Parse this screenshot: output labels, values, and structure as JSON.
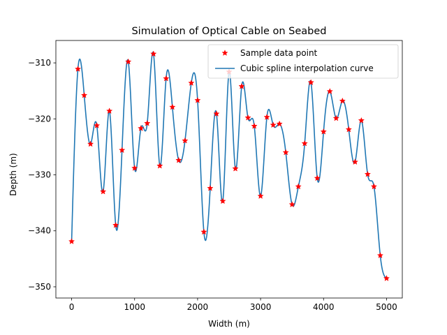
{
  "chart_data": {
    "type": "line",
    "title": "Simulation of Optical Cable on Seabed",
    "xlabel": "Width (m)",
    "ylabel": "Depth (m)",
    "xlim": [
      -250,
      5250
    ],
    "ylim": [
      -352,
      -306
    ],
    "xticks": [
      0,
      1000,
      2000,
      3000,
      4000,
      5000
    ],
    "xtick_labels": [
      "0",
      "1000",
      "2000",
      "3000",
      "4000",
      "5000"
    ],
    "yticks": [
      -310,
      -320,
      -330,
      -340,
      -350
    ],
    "ytick_labels": [
      "−310",
      "−320",
      "−330",
      "−340",
      "−350"
    ],
    "grid": false,
    "legend_position": "top-right",
    "legend": [
      {
        "label": "Sample data point",
        "marker": "star",
        "color": "#ff0000"
      },
      {
        "label": "Cubic spline interpolation curve",
        "marker": "line",
        "color": "#1f77b4"
      }
    ],
    "series": [
      {
        "name": "Sample data point",
        "kind": "scatter",
        "color": "#ff0000",
        "points": [
          [
            0,
            -341.9
          ],
          [
            100,
            -311.1
          ],
          [
            200,
            -315.8
          ],
          [
            300,
            -324.5
          ],
          [
            400,
            -321.2
          ],
          [
            500,
            -333.0
          ],
          [
            600,
            -318.6
          ],
          [
            700,
            -339.0
          ],
          [
            800,
            -325.6
          ],
          [
            900,
            -309.8
          ],
          [
            1000,
            -328.8
          ],
          [
            1100,
            -321.7
          ],
          [
            1200,
            -320.8
          ],
          [
            1300,
            -308.4
          ],
          [
            1400,
            -328.4
          ],
          [
            1500,
            -312.8
          ],
          [
            1600,
            -317.9
          ],
          [
            1700,
            -327.4
          ],
          [
            1800,
            -323.9
          ],
          [
            1900,
            -313.6
          ],
          [
            2000,
            -316.7
          ],
          [
            2100,
            -340.2
          ],
          [
            2200,
            -332.4
          ],
          [
            2300,
            -319.1
          ],
          [
            2400,
            -334.7
          ],
          [
            2500,
            -311.6
          ],
          [
            2600,
            -328.9
          ],
          [
            2700,
            -314.2
          ],
          [
            2800,
            -319.8
          ],
          [
            2900,
            -321.3
          ],
          [
            3000,
            -333.8
          ],
          [
            3100,
            -319.7
          ],
          [
            3200,
            -321.1
          ],
          [
            3300,
            -320.9
          ],
          [
            3400,
            -326.0
          ],
          [
            3500,
            -335.3
          ],
          [
            3600,
            -332.1
          ],
          [
            3700,
            -324.4
          ],
          [
            3800,
            -313.5
          ],
          [
            3900,
            -330.6
          ],
          [
            4000,
            -322.3
          ],
          [
            4100,
            -315.1
          ],
          [
            4200,
            -319.9
          ],
          [
            4300,
            -316.8
          ],
          [
            4400,
            -321.9
          ],
          [
            4500,
            -327.7
          ],
          [
            4600,
            -320.3
          ],
          [
            4700,
            -329.9
          ],
          [
            4800,
            -332.1
          ],
          [
            4900,
            -344.4
          ],
          [
            5000,
            -348.5
          ]
        ]
      },
      {
        "name": "Cubic spline interpolation curve",
        "kind": "line",
        "color": "#1f77b4"
      }
    ]
  }
}
